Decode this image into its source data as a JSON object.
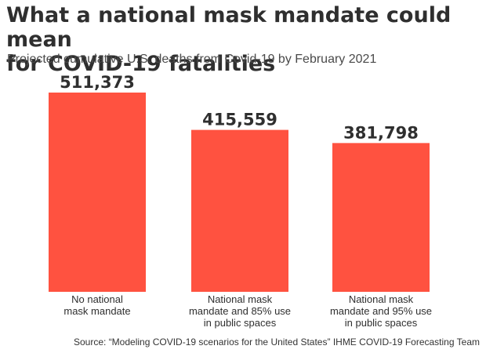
{
  "title_line1": "What a national mask mandate could mean",
  "title_line2": "for COVID-19 fatalities",
  "subtitle": "Projected cumulative U.S. deaths from Covid-19 by February 2021",
  "source": "Source: “Modeling COVID-19 scenarios for the United States” IHME COVID-19 Forecasting Team",
  "chart_data": {
    "type": "bar",
    "title": "What a national mask mandate could mean for COVID-19 fatalities",
    "subtitle": "Projected cumulative U.S. deaths from Covid-19 by February 2021",
    "categories": [
      [
        "No national",
        "mask mandate"
      ],
      [
        "National mask",
        "mandate and 85% use",
        "in public spaces"
      ],
      [
        "National mask",
        "mandate and 95% use",
        "in public spaces"
      ]
    ],
    "values": [
      511373,
      415559,
      381798
    ],
    "data_labels": [
      "511,373",
      "415,559",
      "381,798"
    ],
    "xlabel": "",
    "ylabel": "",
    "ylim": [
      0,
      511373
    ],
    "grid": false,
    "legend": "none",
    "bar_color": "#ff5240",
    "source": "Source: “Modeling COVID-19 scenarios for the United States” IHME COVID-19 Forecasting Team"
  }
}
